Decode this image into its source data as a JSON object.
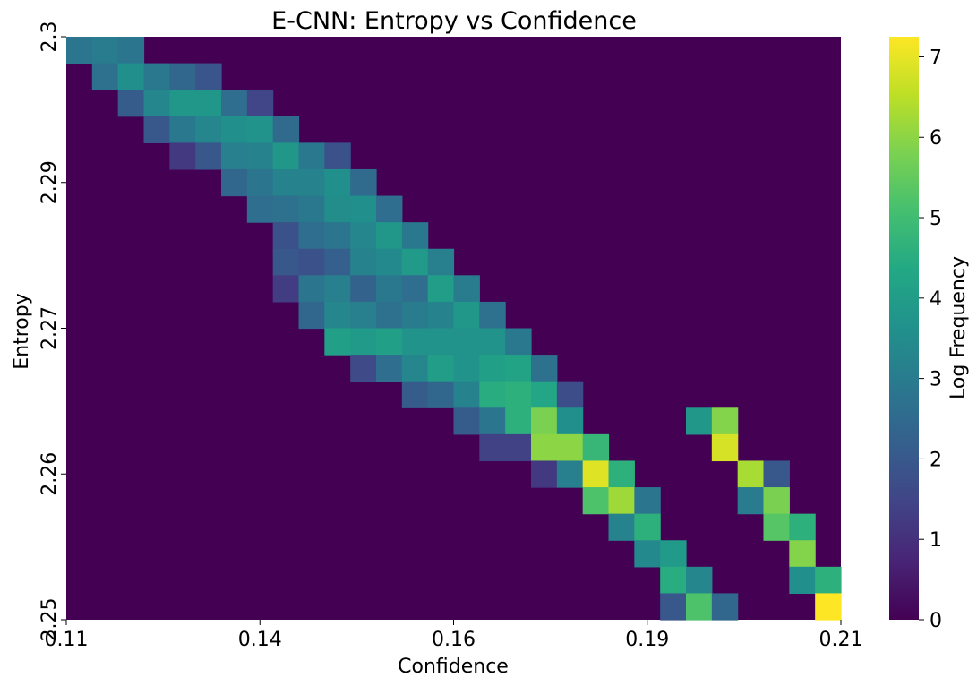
{
  "chart_data": {
    "type": "heatmap",
    "title": "E-CNN: Entropy vs Confidence",
    "xlabel": "Confidence",
    "ylabel": "Entropy",
    "colorbar_label": "Log Frequency",
    "colormap": "viridis",
    "xlim": [
      0.11,
      0.21
    ],
    "ylim": [
      2.25,
      2.3
    ],
    "x_tick_labels": [
      "0.11",
      "0.14",
      "0.16",
      "0.19",
      "0.21"
    ],
    "y_tick_labels": [
      "2.3",
      "2.29",
      "2.27",
      "2.26",
      "2.25"
    ],
    "colorbar_ticks": [
      "0",
      "1",
      "2",
      "3",
      "4",
      "5",
      "6",
      "7"
    ],
    "colorbar_range": [
      0,
      7.25
    ],
    "grid": false,
    "n_cols": 30,
    "n_rows": 22,
    "note_cells": "cells listed as [column, row, log_frequency]; column 0 = lowest confidence, row 0 = highest entropy; unlisted cells are 0",
    "cells": [
      [
        0,
        0,
        2.8
      ],
      [
        1,
        0,
        3.0
      ],
      [
        2,
        0,
        2.8
      ],
      [
        1,
        1,
        2.7
      ],
      [
        2,
        1,
        3.6
      ],
      [
        3,
        1,
        2.9
      ],
      [
        4,
        1,
        2.4
      ],
      [
        5,
        1,
        1.9
      ],
      [
        2,
        2,
        2.1
      ],
      [
        3,
        2,
        3.3
      ],
      [
        4,
        2,
        3.8
      ],
      [
        5,
        2,
        3.8
      ],
      [
        6,
        2,
        2.6
      ],
      [
        7,
        2,
        1.5
      ],
      [
        3,
        3,
        2.0
      ],
      [
        4,
        3,
        2.9
      ],
      [
        5,
        3,
        3.3
      ],
      [
        6,
        3,
        3.6
      ],
      [
        7,
        3,
        3.7
      ],
      [
        8,
        3,
        2.5
      ],
      [
        4,
        4,
        1.2
      ],
      [
        5,
        4,
        2.0
      ],
      [
        6,
        4,
        3.1
      ],
      [
        7,
        4,
        3.2
      ],
      [
        8,
        4,
        3.8
      ],
      [
        9,
        4,
        2.9
      ],
      [
        10,
        4,
        1.8
      ],
      [
        6,
        5,
        2.4
      ],
      [
        7,
        5,
        2.8
      ],
      [
        8,
        5,
        3.2
      ],
      [
        9,
        5,
        3.2
      ],
      [
        10,
        5,
        3.6
      ],
      [
        11,
        5,
        2.5
      ],
      [
        7,
        6,
        2.6
      ],
      [
        8,
        6,
        2.7
      ],
      [
        9,
        6,
        2.9
      ],
      [
        10,
        6,
        3.5
      ],
      [
        11,
        6,
        3.6
      ],
      [
        12,
        6,
        2.6
      ],
      [
        8,
        7,
        1.8
      ],
      [
        9,
        7,
        2.6
      ],
      [
        10,
        7,
        2.8
      ],
      [
        11,
        7,
        3.3
      ],
      [
        12,
        7,
        3.8
      ],
      [
        13,
        7,
        2.9
      ],
      [
        8,
        8,
        2.0
      ],
      [
        9,
        8,
        1.8
      ],
      [
        10,
        8,
        2.2
      ],
      [
        11,
        8,
        3.2
      ],
      [
        12,
        8,
        3.4
      ],
      [
        13,
        8,
        3.9
      ],
      [
        14,
        8,
        3.1
      ],
      [
        8,
        9,
        1.3
      ],
      [
        9,
        9,
        2.8
      ],
      [
        10,
        9,
        3.1
      ],
      [
        11,
        9,
        2.3
      ],
      [
        12,
        9,
        2.9
      ],
      [
        13,
        9,
        2.6
      ],
      [
        14,
        9,
        4.0
      ],
      [
        15,
        9,
        3.0
      ],
      [
        9,
        10,
        2.4
      ],
      [
        10,
        10,
        3.3
      ],
      [
        11,
        10,
        3.1
      ],
      [
        12,
        10,
        2.7
      ],
      [
        13,
        10,
        3.0
      ],
      [
        14,
        10,
        3.2
      ],
      [
        15,
        10,
        3.8
      ],
      [
        16,
        10,
        2.7
      ],
      [
        10,
        11,
        4.1
      ],
      [
        11,
        11,
        3.9
      ],
      [
        12,
        11,
        4.1
      ],
      [
        13,
        11,
        3.7
      ],
      [
        14,
        11,
        3.7
      ],
      [
        15,
        11,
        3.7
      ],
      [
        16,
        11,
        3.7
      ],
      [
        17,
        11,
        2.9
      ],
      [
        11,
        12,
        1.6
      ],
      [
        12,
        12,
        2.6
      ],
      [
        13,
        12,
        3.3
      ],
      [
        14,
        12,
        4.0
      ],
      [
        15,
        12,
        3.7
      ],
      [
        16,
        12,
        4.1
      ],
      [
        17,
        12,
        4.2
      ],
      [
        18,
        12,
        2.7
      ],
      [
        13,
        13,
        2.1
      ],
      [
        14,
        13,
        2.4
      ],
      [
        15,
        13,
        3.2
      ],
      [
        16,
        13,
        4.5
      ],
      [
        17,
        13,
        4.6
      ],
      [
        18,
        13,
        4.3
      ],
      [
        19,
        13,
        1.7
      ],
      [
        15,
        14,
        2.1
      ],
      [
        16,
        14,
        2.8
      ],
      [
        17,
        14,
        4.6
      ],
      [
        18,
        14,
        5.8
      ],
      [
        19,
        14,
        3.6
      ],
      [
        16,
        15,
        1.4
      ],
      [
        17,
        15,
        1.4
      ],
      [
        18,
        15,
        6.0
      ],
      [
        19,
        15,
        6.0
      ],
      [
        20,
        15,
        4.8
      ],
      [
        18,
        16,
        1.2
      ],
      [
        19,
        16,
        3.1
      ],
      [
        20,
        16,
        6.9
      ],
      [
        21,
        16,
        4.6
      ],
      [
        20,
        17,
        5.2
      ],
      [
        21,
        17,
        6.2
      ],
      [
        22,
        17,
        2.8
      ],
      [
        21,
        18,
        3.2
      ],
      [
        22,
        18,
        4.6
      ],
      [
        22,
        19,
        3.4
      ],
      [
        23,
        19,
        3.9
      ],
      [
        23,
        20,
        4.5
      ],
      [
        24,
        20,
        3.3
      ],
      [
        23,
        21,
        2.0
      ],
      [
        24,
        21,
        5.2
      ],
      [
        25,
        21,
        2.4
      ]
    ],
    "cells_lower": [
      [
        24,
        0,
        3.8
      ],
      [
        25,
        0,
        5.9
      ],
      [
        25,
        1,
        6.8
      ],
      [
        26,
        2,
        6.3
      ],
      [
        27,
        2,
        2.0
      ],
      [
        26,
        3,
        3.0
      ],
      [
        27,
        3,
        5.8
      ],
      [
        27,
        4,
        5.3
      ],
      [
        28,
        4,
        4.6
      ],
      [
        28,
        5,
        5.9
      ],
      [
        28,
        6,
        3.6
      ],
      [
        29,
        6,
        4.6
      ],
      [
        29,
        7,
        7.25
      ]
    ]
  }
}
